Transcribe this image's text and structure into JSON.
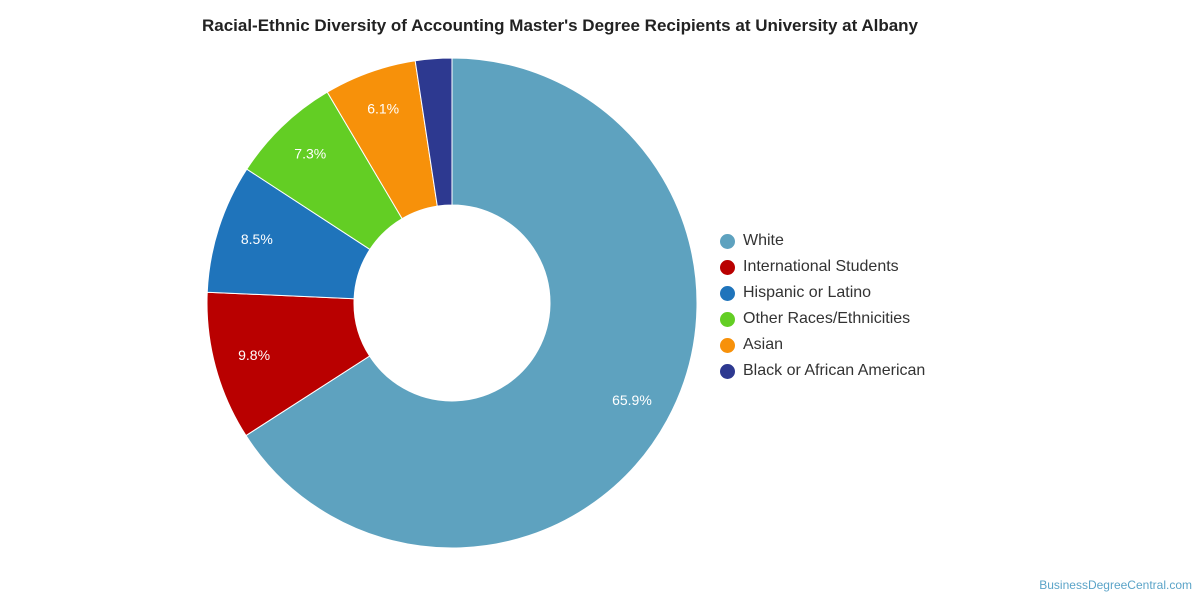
{
  "chart_data": {
    "type": "pie",
    "variant": "donut",
    "title": "Racial-Ethnic Diversity of Accounting Master's Degree Recipients at University at Albany",
    "labels": [
      "White",
      "International Students",
      "Hispanic or Latino",
      "Other Races/Ethnicities",
      "Asian",
      "Black or African American"
    ],
    "values": [
      65.9,
      9.8,
      8.5,
      7.3,
      6.1,
      2.4
    ],
    "data_labels": [
      "65.9%",
      "9.8%",
      "8.5%",
      "7.3%",
      "6.1%",
      ""
    ],
    "colors": [
      "#5ea2bf",
      "#b90000",
      "#1f74bb",
      "#63ce24",
      "#f7910a",
      "#2d3990"
    ],
    "legend_position": "right"
  },
  "footer": {
    "credit": "BusinessDegreeCentral.com"
  }
}
